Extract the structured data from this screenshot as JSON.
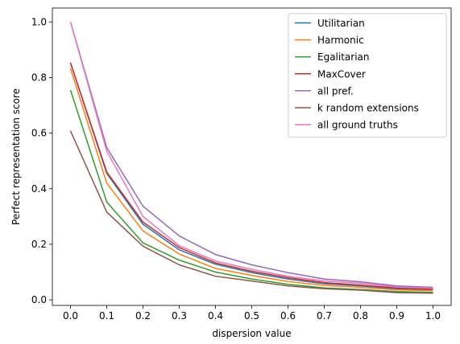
{
  "chart_data": {
    "type": "line",
    "xlabel": "dispersion value",
    "ylabel": "Perfect representation score",
    "xlim": [
      -0.05,
      1.05
    ],
    "ylim": [
      -0.02,
      1.05
    ],
    "x": [
      0.0,
      0.1,
      0.2,
      0.3,
      0.4,
      0.5,
      0.6,
      0.7,
      0.8,
      0.9,
      1.0
    ],
    "xticks": [
      "0.0",
      "0.1",
      "0.2",
      "0.3",
      "0.4",
      "0.5",
      "0.6",
      "0.7",
      "0.8",
      "0.9",
      "1.0"
    ],
    "yticks": [
      "0.0",
      "0.2",
      "0.4",
      "0.6",
      "0.8",
      "1.0"
    ],
    "grid": false,
    "legend_position": "top-right",
    "series": [
      {
        "name": "Utilitarian",
        "color": "#1f77b4",
        "values": [
          0.853,
          0.455,
          0.272,
          0.18,
          0.128,
          0.098,
          0.075,
          0.058,
          0.05,
          0.04,
          0.036
        ]
      },
      {
        "name": "Harmonic",
        "color": "#ff7f0e",
        "values": [
          0.833,
          0.42,
          0.248,
          0.165,
          0.113,
          0.088,
          0.066,
          0.052,
          0.045,
          0.036,
          0.033
        ]
      },
      {
        "name": "Egalitarian",
        "color": "#2ca02c",
        "values": [
          0.755,
          0.352,
          0.205,
          0.143,
          0.1,
          0.075,
          0.056,
          0.043,
          0.037,
          0.03,
          0.027
        ]
      },
      {
        "name": "MaxCover",
        "color": "#d62728",
        "values": [
          0.853,
          0.46,
          0.28,
          0.188,
          0.133,
          0.103,
          0.08,
          0.062,
          0.053,
          0.043,
          0.038
        ]
      },
      {
        "name": "all pref.",
        "color": "#9467bd",
        "values": [
          1.0,
          0.548,
          0.337,
          0.23,
          0.163,
          0.126,
          0.098,
          0.075,
          0.065,
          0.05,
          0.045
        ]
      },
      {
        "name": "k random extensions",
        "color": "#8c564b",
        "values": [
          0.608,
          0.316,
          0.193,
          0.126,
          0.085,
          0.068,
          0.05,
          0.04,
          0.035,
          0.026,
          0.024
        ]
      },
      {
        "name": "all ground truths",
        "color": "#e377c2",
        "values": [
          1.0,
          0.535,
          0.3,
          0.195,
          0.14,
          0.11,
          0.085,
          0.068,
          0.06,
          0.046,
          0.042
        ]
      }
    ]
  }
}
